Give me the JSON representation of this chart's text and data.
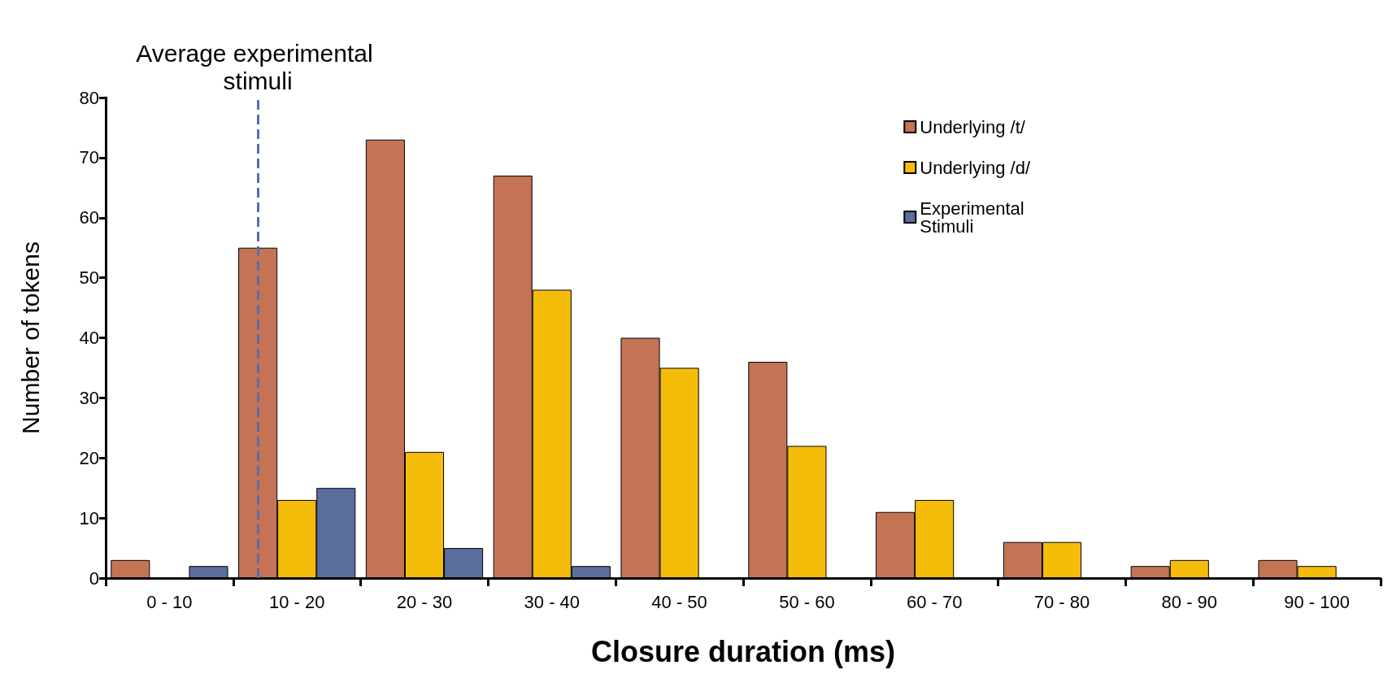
{
  "chart_data": {
    "type": "bar",
    "xlabel": "Closure duration (ms)",
    "ylabel": "Number of tokens",
    "categories": [
      "0 - 10",
      "10 - 20",
      "20 - 30",
      "30 - 40",
      "40 - 50",
      "50 - 60",
      "60 - 70",
      "70 - 80",
      "80 - 90",
      "90 - 100"
    ],
    "series": [
      {
        "name": "Underlying /t/",
        "color": "#c47355",
        "values": [
          3,
          55,
          73,
          67,
          40,
          36,
          11,
          6,
          2,
          3
        ]
      },
      {
        "name": "Underlying /d/",
        "color": "#f5bd0a",
        "values": [
          0,
          13,
          21,
          48,
          35,
          22,
          13,
          6,
          3,
          2
        ]
      },
      {
        "name": "Experimental Stimuli",
        "color": "#5a6e9c",
        "values": [
          2,
          15,
          5,
          2,
          0,
          0,
          0,
          0,
          0,
          0
        ]
      }
    ],
    "ylim": [
      0,
      80
    ],
    "yticks": [
      0,
      10,
      20,
      30,
      40,
      50,
      60,
      70,
      80
    ],
    "grid": false,
    "legend": "top right",
    "ref_lines": [
      {
        "axis": "x",
        "value": "10 - 20",
        "label": "Average experimental stimuli",
        "color": "#5a6ea8",
        "line_style": "dashed"
      }
    ]
  }
}
